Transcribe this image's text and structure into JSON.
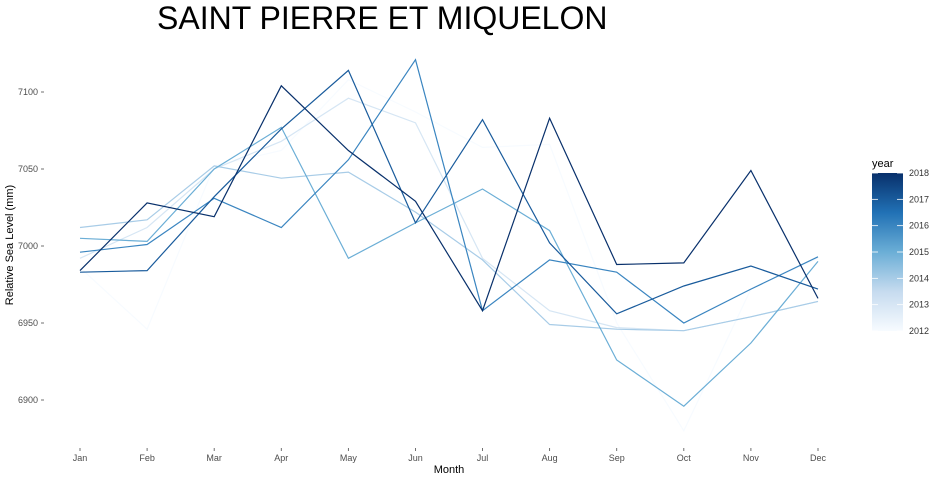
{
  "chart_data": {
    "type": "line",
    "title": "SAINT PIERRE ET MIQUELON",
    "xlabel": "Month",
    "ylabel": "Relative Sea Level (mm)",
    "categories": [
      "Jan",
      "Feb",
      "Mar",
      "Apr",
      "May",
      "Jun",
      "Jul",
      "Aug",
      "Sep",
      "Oct",
      "Nov",
      "Dec"
    ],
    "ylim": [
      6875,
      7125
    ],
    "yticks": [
      6900,
      6950,
      7000,
      7050,
      7100
    ],
    "grid": false,
    "legend": {
      "title": "year",
      "position": "right",
      "type": "colorbar",
      "min": 2012,
      "max": 2018,
      "ticks": [
        2012,
        2013,
        2014,
        2015,
        2016,
        2017,
        2018
      ],
      "colors": [
        "#f7fbff",
        "#08306b"
      ]
    },
    "series": [
      {
        "year": 2012,
        "values": [
          6986,
          6946,
          7052,
          7062,
          7108,
          7087,
          7064,
          7066,
          6950,
          6880,
          6972,
          6992
        ]
      },
      {
        "year": 2013,
        "values": [
          6992,
          7012,
          7050,
          7068,
          7096,
          7080,
          6992,
          6958,
          6947,
          6945,
          6954,
          6964
        ]
      },
      {
        "year": 2014,
        "values": [
          7012,
          7017,
          7052,
          7044,
          7048,
          7022,
          6991,
          6949,
          6946,
          6945,
          6954,
          6964
        ]
      },
      {
        "year": 2015,
        "values": [
          7005,
          7003,
          7050,
          7077,
          6992,
          7015,
          7037,
          7010,
          6926,
          6896,
          6937,
          6990
        ]
      },
      {
        "year": 2016,
        "values": [
          6996,
          7001,
          7031,
          7012,
          7056,
          7121,
          6958,
          6991,
          6983,
          6950,
          6972,
          6993
        ]
      },
      {
        "year": 2017,
        "values": [
          6983,
          6984,
          7032,
          7076,
          7114,
          7015,
          7082,
          7002,
          6956,
          6974,
          6987,
          6972
        ]
      },
      {
        "year": 2018,
        "values": [
          6984,
          7028,
          7019,
          7104,
          7062,
          7029,
          6958,
          7083,
          6988,
          6989,
          7049,
          6966
        ]
      }
    ]
  }
}
